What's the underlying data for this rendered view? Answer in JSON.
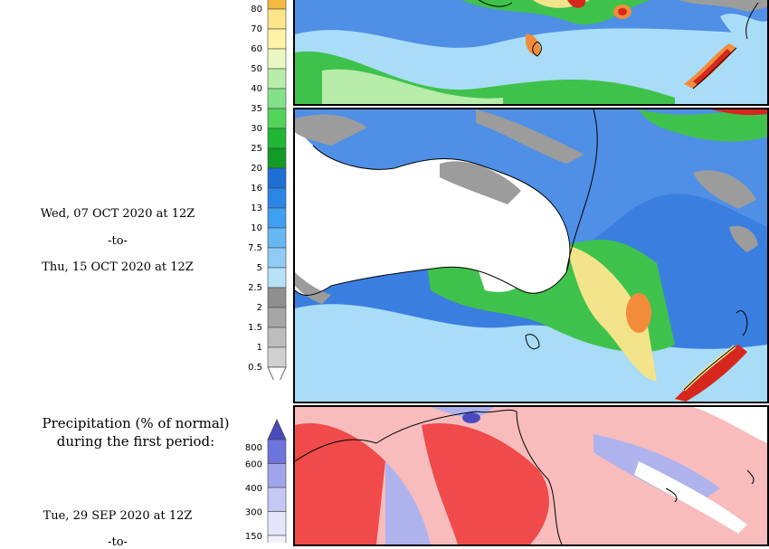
{
  "precip_scale": {
    "labels": [
      "80",
      "70",
      "60",
      "50",
      "40",
      "35",
      "30",
      "25",
      "20",
      "16",
      "13",
      "10",
      "7.5",
      "5",
      "2.5",
      "2",
      "1.5",
      "1",
      "0.5"
    ],
    "colors": [
      "#f5b942",
      "#fde58a",
      "#fff2a6",
      "#e9f7c2",
      "#b8ecaa",
      "#85e08a",
      "#52d35a",
      "#1fb733",
      "#119a25",
      "#1d6fd3",
      "#2c86e5",
      "#3f9ff0",
      "#66b7f4",
      "#8fcbf4",
      "#b6e1f7",
      "#8f8f8f",
      "#a6a6a6",
      "#bdbdbd",
      "#d0d0d0",
      "#ffffff"
    ]
  },
  "mid_period": {
    "start": "Wed, 07 OCT 2020 at 12Z",
    "to": "-to-",
    "end": "Thu, 15 OCT 2020 at 12Z"
  },
  "normal_section": {
    "title": "Precipitation (% of normal)\nduring the first period:",
    "start": "Tue, 29 SEP 2020 at 12Z",
    "to": "-to-",
    "scale_labels": [
      "800",
      "600",
      "400",
      "300",
      "150"
    ],
    "scale_colors": [
      "#4a4ac0",
      "#6e74db",
      "#9fa5ea",
      "#c4c8f3",
      "#e4e6fb",
      "#f2f2fd"
    ]
  },
  "map_colors": {
    "ocean_blue": "#4f8fe6",
    "light_blue": "#a9dcf7",
    "green": "#3fc24b",
    "dark_green": "#169a2a",
    "yellow": "#f3e48b",
    "orange": "#f28c3a",
    "red": "#d6261d",
    "gray": "#9c9c9c",
    "land_white": "#ffffff",
    "pct_red": "#f04a4a",
    "pct_pink": "#f8bcbc",
    "pct_blue": "#aeb3ee"
  }
}
